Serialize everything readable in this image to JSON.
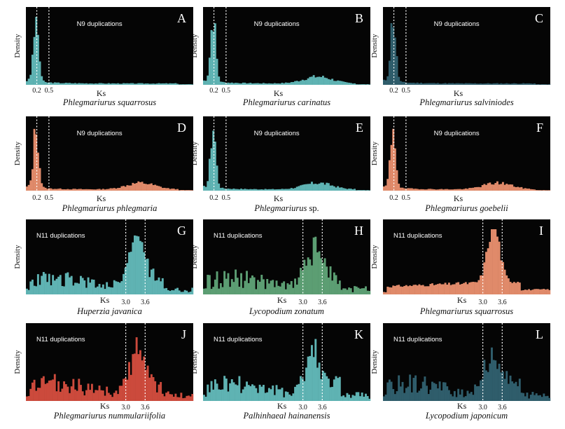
{
  "figure": {
    "y_axis_label": "Density",
    "x_axis_label": "Ks"
  },
  "chart_data": [
    {
      "type": "bar",
      "panel": "A",
      "species": "Phlegmariurus squarrosus",
      "species_suffix": "",
      "annotation": "N9  duplications",
      "color": "#5fb3b3",
      "group": "N9",
      "ticks": [
        "0.2",
        "0.5"
      ],
      "lines": [
        0.2,
        0.5
      ],
      "xlim": [
        0,
        4
      ],
      "shape": "early",
      "seed": 3
    },
    {
      "type": "bar",
      "panel": "B",
      "species": "Phlegmariurus carinatus",
      "species_suffix": "",
      "annotation": "N9  duplications",
      "color": "#5fb3b3",
      "group": "N9",
      "ticks": [
        "0.2",
        "0.5"
      ],
      "lines": [
        0.2,
        0.5
      ],
      "xlim": [
        0,
        4
      ],
      "shape": "early_bump",
      "seed": 7
    },
    {
      "type": "bar",
      "panel": "C",
      "species": "Phlegmariurus salviniodes",
      "species_suffix": "",
      "annotation": "N9  duplications",
      "color": "#2f5d6b",
      "group": "N9",
      "ticks": [
        "0.2",
        "0.5"
      ],
      "lines": [
        0.2,
        0.5
      ],
      "xlim": [
        0,
        4
      ],
      "shape": "early",
      "seed": 11
    },
    {
      "type": "bar",
      "panel": "D",
      "species": "Phlegmariurus phlegmaria",
      "species_suffix": "",
      "annotation": "N9  duplications",
      "color": "#e08a6a",
      "group": "N9",
      "ticks": [
        "0.2",
        "0.5"
      ],
      "lines": [
        0.2,
        0.5
      ],
      "xlim": [
        0,
        4
      ],
      "shape": "early_bump",
      "seed": 13
    },
    {
      "type": "bar",
      "panel": "E",
      "species": "Phlegmariurus",
      "species_suffix": " sp.",
      "annotation": "N9  duplications",
      "color": "#5fb3b3",
      "group": "N9",
      "ticks": [
        "0.2",
        "0.5"
      ],
      "lines": [
        0.2,
        0.5
      ],
      "xlim": [
        0,
        4
      ],
      "shape": "early_bump",
      "seed": 17
    },
    {
      "type": "bar",
      "panel": "F",
      "species": "Phlegmariurus goebelii",
      "species_suffix": "",
      "annotation": "N9  duplications",
      "color": "#e08a6a",
      "group": "N9",
      "ticks": [
        "0.2",
        "0.5"
      ],
      "lines": [
        0.2,
        0.5
      ],
      "xlim": [
        0,
        4
      ],
      "shape": "early_bump",
      "seed": 19
    },
    {
      "type": "bar",
      "panel": "G",
      "species": "Huperzia javanica",
      "species_suffix": "",
      "annotation": "N11 duplications",
      "color": "#5fb3b3",
      "group": "N11",
      "ticks": [
        "3.0",
        "3.6"
      ],
      "lines": [
        3.0,
        3.6
      ],
      "xlim": [
        0,
        5
      ],
      "shape": "late",
      "seed": 23
    },
    {
      "type": "bar",
      "panel": "H",
      "species": "Lycopodium zonatum",
      "species_suffix": "",
      "annotation": "N11 duplications",
      "color": "#5c9e73",
      "group": "N11",
      "ticks": [
        "3.0",
        "3.6"
      ],
      "lines": [
        3.0,
        3.6
      ],
      "xlim": [
        0,
        5
      ],
      "shape": "late_noisy",
      "seed": 29
    },
    {
      "type": "bar",
      "panel": "I",
      "species": "Phlegmariurus squarrosus",
      "species_suffix": "",
      "annotation": "N11 duplications",
      "color": "#e08a6a",
      "group": "N11",
      "ticks": [
        "3.0",
        "3.6"
      ],
      "lines": [
        3.0,
        3.6
      ],
      "xlim": [
        0,
        5
      ],
      "shape": "late_sharp",
      "seed": 31
    },
    {
      "type": "bar",
      "panel": "J",
      "species": "Phlegmariurus nummulariifolia",
      "species_suffix": "",
      "annotation": "N11 duplications",
      "color": "#cc4a3c",
      "group": "N11",
      "ticks": [
        "3.0",
        "3.6"
      ],
      "lines": [
        3.0,
        3.6
      ],
      "xlim": [
        0,
        5
      ],
      "shape": "late_noisy",
      "seed": 37
    },
    {
      "type": "bar",
      "panel": "K",
      "species": "Palhinhaeal hainanensis",
      "species_suffix": "",
      "annotation": "N11 duplications",
      "color": "#5fb3b3",
      "group": "N11",
      "ticks": [
        "3.0",
        "3.6"
      ],
      "lines": [
        3.0,
        3.6
      ],
      "xlim": [
        0,
        5
      ],
      "shape": "late_noisy",
      "seed": 41
    },
    {
      "type": "bar",
      "panel": "L",
      "species": "Lycopodium japonicum",
      "species_suffix": "",
      "annotation": "N11 duplications",
      "color": "#2f5d6b",
      "group": "N11",
      "ticks": [
        "3.0",
        "3.6"
      ],
      "lines": [
        3.0,
        3.6
      ],
      "xlim": [
        0,
        5
      ],
      "shape": "late_noisy",
      "seed": 43
    }
  ]
}
